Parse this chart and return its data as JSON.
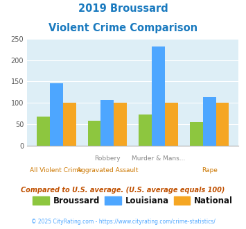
{
  "title_line1": "2019 Broussard",
  "title_line2": "Violent Crime Comparison",
  "cat_top": [
    "",
    "Robbery",
    "Murder & Mans...",
    ""
  ],
  "cat_bot": [
    "All Violent Crime",
    "Aggravated Assault",
    "",
    "Rape"
  ],
  "broussard": [
    67,
    58,
    72,
    54
  ],
  "louisiana": [
    146,
    106,
    233,
    114
  ],
  "national": [
    100,
    100,
    100,
    100
  ],
  "color_broussard": "#8dc63f",
  "color_louisiana": "#4da6ff",
  "color_national": "#f5a623",
  "ylim": [
    0,
    250
  ],
  "yticks": [
    0,
    50,
    100,
    150,
    200,
    250
  ],
  "bg_color": "#ddeef6",
  "footnote": "Compared to U.S. average. (U.S. average equals 100)",
  "copyright": "© 2025 CityRating.com - https://www.cityrating.com/crime-statistics/",
  "title_color": "#1a7abf",
  "footnote_color": "#c05000",
  "copyright_color": "#4da6ff",
  "cat_top_color": "#888888",
  "cat_bot_color": "#cc7700"
}
